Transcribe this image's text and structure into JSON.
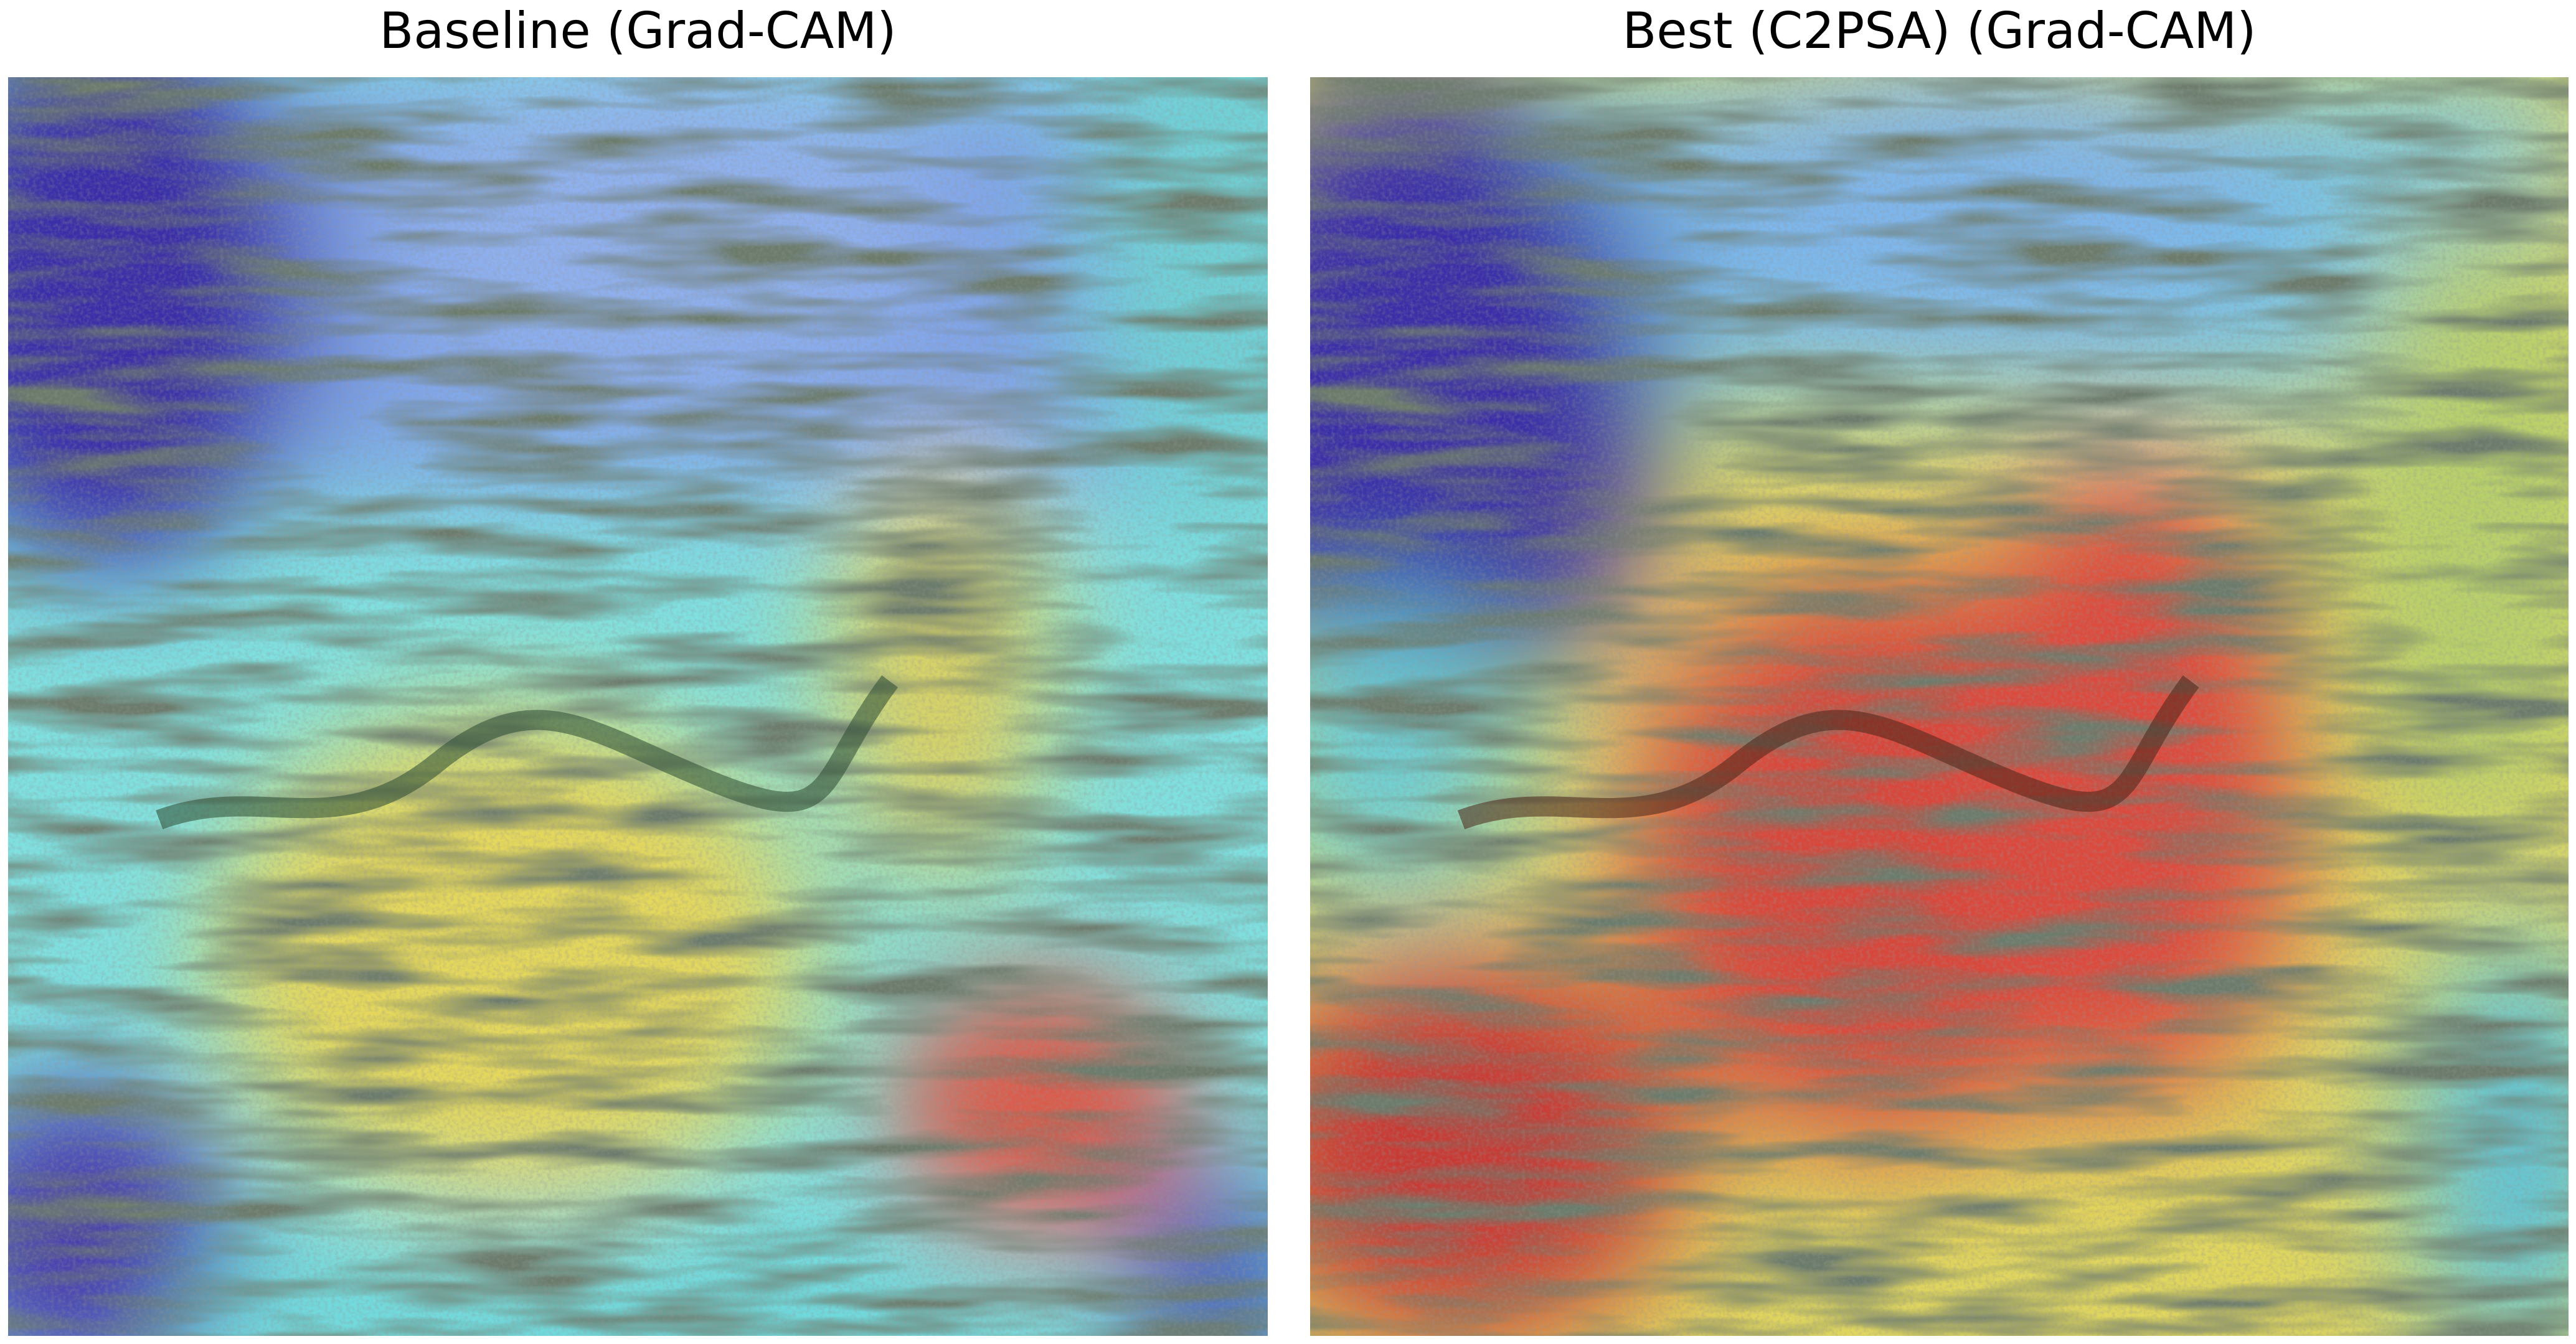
{
  "panels": [
    {
      "title": "Baseline (Grad-CAM)",
      "image": "grad-cam-heatmap-overlay-baseline"
    },
    {
      "title": "Best (C2PSA) (Grad-CAM)",
      "image": "grad-cam-heatmap-overlay-c2psa"
    }
  ],
  "colormap": {
    "low": "#2a1f9a",
    "mid_low": "#5fd8e0",
    "mid": "#e6dd55",
    "high": "#d8332e"
  }
}
